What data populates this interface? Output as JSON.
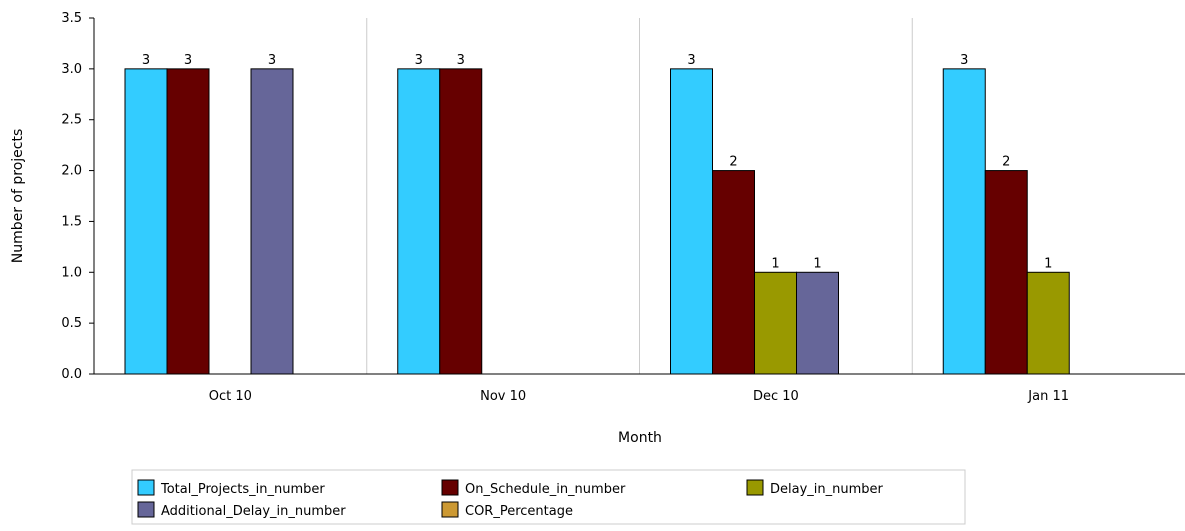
{
  "chart_data": {
    "type": "bar",
    "title": "",
    "xlabel": "Month",
    "ylabel": "Number of projects",
    "ylim": [
      0,
      3.5
    ],
    "yticks": [
      "0.0",
      "0.5",
      "1.0",
      "1.5",
      "2.0",
      "2.5",
      "3.0",
      "3.5"
    ],
    "categories": [
      "Oct 10",
      "Nov 10",
      "Dec 10",
      "Jan 11"
    ],
    "series": [
      {
        "name": "Total_Projects_in_number",
        "color": "#33ccff",
        "values": [
          3,
          3,
          3,
          3
        ]
      },
      {
        "name": "On_Schedule_in_number",
        "color": "#660000",
        "values": [
          3,
          3,
          2,
          2
        ]
      },
      {
        "name": "Delay_in_number",
        "color": "#999900",
        "values": [
          0,
          0,
          1,
          1
        ]
      },
      {
        "name": "Additional_Delay_in_number",
        "color": "#666699",
        "values": [
          3,
          0,
          1,
          0
        ]
      },
      {
        "name": "COR_Percentage",
        "color": "#cc9933",
        "values": [
          0,
          0,
          0,
          0
        ]
      }
    ],
    "grid": "vertical",
    "legend_position": "bottom"
  }
}
